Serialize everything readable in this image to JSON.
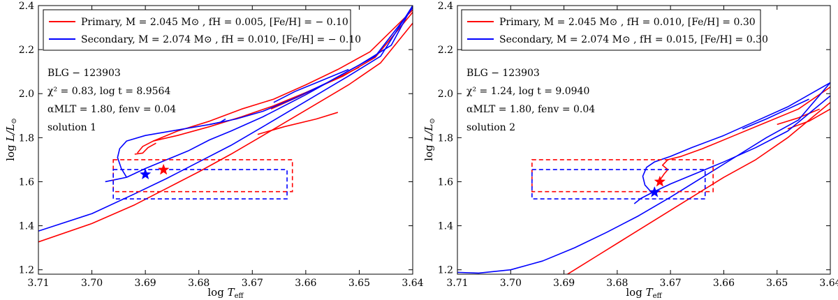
{
  "chart_data": [
    {
      "type": "line",
      "panel": "left",
      "xlabel": "log T_eff",
      "ylabel": "log L/L_⊙",
      "xlim": [
        3.71,
        3.64
      ],
      "ylim": [
        1.18,
        2.4
      ],
      "xticks": [
        "3.71",
        "3.70",
        "3.69",
        "3.68",
        "3.67",
        "3.66",
        "3.65",
        "3.64"
      ],
      "yticks": [
        "1.2",
        "1.4",
        "1.6",
        "1.8",
        "2.0",
        "2.2",
        "2.4"
      ],
      "legend": {
        "location": "top-left",
        "entries": [
          "Primary,  M = 2.045 M⊙ ,  fH = 0.005,  [Fe/H] = − 0.10",
          "Secondary,  M = 2.074 M⊙ ,  fH = 0.010,  [Fe/H] = − 0.10"
        ]
      },
      "annotations": [
        "BLG − 123903",
        "χ² = 0.83,  log t = 8.9564",
        "αMLT = 1.80,  fenv = 0.04",
        "solution 1"
      ],
      "series": [
        {
          "name": "Primary",
          "color": "#ff0000",
          "main": [
            [
              3.712,
              1.31
            ],
            [
              3.7,
              1.41
            ],
            [
              3.692,
              1.495
            ],
            [
              3.686,
              1.57
            ],
            [
              3.68,
              1.645
            ],
            [
              3.674,
              1.725
            ],
            [
              3.668,
              1.81
            ],
            [
              3.66,
              1.925
            ],
            [
              3.652,
              2.04
            ],
            [
              3.646,
              2.14
            ],
            [
              3.64,
              2.32
            ]
          ],
          "loop": [
            [
              3.6915,
              1.73
            ],
            [
              3.6905,
              1.76
            ],
            [
              3.6885,
              1.785
            ],
            [
              3.684,
              1.81
            ],
            [
              3.678,
              1.85
            ],
            [
              3.672,
              1.895
            ],
            [
              3.666,
              1.945
            ],
            [
              3.66,
              2.005
            ],
            [
              3.653,
              2.08
            ],
            [
              3.647,
              2.165
            ],
            [
              3.64,
              2.37
            ]
          ],
          "upper": [
            [
              3.6885,
              1.785
            ],
            [
              3.684,
              1.83
            ],
            [
              3.678,
              1.875
            ],
            [
              3.672,
              1.93
            ],
            [
              3.666,
              1.975
            ],
            [
              3.66,
              2.04
            ],
            [
              3.654,
              2.11
            ],
            [
              3.648,
              2.19
            ],
            [
              3.64,
              2.38
            ]
          ],
          "hook": [
            [
              3.688,
              1.775
            ],
            [
              3.6895,
              1.755
            ],
            [
              3.6905,
              1.73
            ],
            [
              3.692,
              1.725
            ]
          ],
          "short": [
            [
              3.6665,
              1.93
            ],
            [
              3.661,
              1.99
            ],
            [
              3.655,
              2.06
            ],
            [
              3.65,
              2.12
            ]
          ],
          "short2": [
            [
              3.669,
              1.815
            ],
            [
              3.664,
              1.85
            ],
            [
              3.658,
              1.885
            ],
            [
              3.654,
              1.915
            ]
          ]
        },
        {
          "name": "Secondary",
          "color": "#0000ff",
          "main": [
            [
              3.712,
              1.36
            ],
            [
              3.7,
              1.455
            ],
            [
              3.692,
              1.545
            ],
            [
              3.686,
              1.615
            ],
            [
              3.68,
              1.69
            ],
            [
              3.674,
              1.765
            ],
            [
              3.668,
              1.85
            ],
            [
              3.66,
              1.965
            ],
            [
              3.652,
              2.08
            ],
            [
              3.646,
              2.17
            ],
            [
              3.64,
              2.4
            ]
          ],
          "loop": [
            [
              3.6935,
              1.62
            ],
            [
              3.6945,
              1.66
            ],
            [
              3.6952,
              1.71
            ],
            [
              3.6948,
              1.75
            ],
            [
              3.6935,
              1.785
            ],
            [
              3.69,
              1.81
            ],
            [
              3.684,
              1.835
            ],
            [
              3.678,
              1.86
            ],
            [
              3.673,
              1.885
            ],
            [
              3.668,
              1.92
            ],
            [
              3.662,
              1.98
            ],
            [
              3.656,
              2.05
            ],
            [
              3.65,
              2.13
            ],
            [
              3.644,
              2.22
            ],
            [
              3.64,
              2.4
            ]
          ],
          "inner": [
            [
              3.6935,
              1.62
            ],
            [
              3.69,
              1.66
            ],
            [
              3.686,
              1.7
            ],
            [
              3.682,
              1.74
            ],
            [
              3.678,
              1.79
            ],
            [
              3.674,
              1.83
            ],
            [
              3.668,
              1.895
            ],
            [
              3.66,
              1.995
            ],
            [
              3.653,
              2.09
            ],
            [
              3.647,
              2.17
            ],
            [
              3.64,
              2.39
            ]
          ],
          "tail": [
            [
              3.6935,
              1.62
            ],
            [
              3.6955,
              1.61
            ],
            [
              3.6975,
              1.6
            ]
          ],
          "kink": [
            [
              3.678,
              1.86
            ],
            [
              3.676,
              1.87
            ],
            [
              3.675,
              1.885
            ]
          ],
          "short": [
            [
              3.666,
              1.96
            ],
            [
              3.662,
              2.01
            ],
            [
              3.658,
              2.05
            ],
            [
              3.652,
              2.11
            ]
          ]
        }
      ],
      "stars": [
        {
          "name": "Secondary",
          "x": 3.69,
          "y": 1.633,
          "color": "#0000ff"
        },
        {
          "name": "Primary",
          "x": 3.6866,
          "y": 1.654,
          "color": "#ff0000"
        }
      ],
      "boxes": [
        {
          "name": "Primary",
          "xmin": 3.6625,
          "xmax": 3.696,
          "ymin": 1.555,
          "ymax": 1.7,
          "color": "#ff0000"
        },
        {
          "name": "Secondary",
          "xmin": 3.6635,
          "xmax": 3.696,
          "ymin": 1.522,
          "ymax": 1.655,
          "color": "#0000ff"
        }
      ]
    },
    {
      "type": "line",
      "panel": "right",
      "xlabel": "log T_eff",
      "ylabel": "log L/L_⊙",
      "xlim": [
        3.71,
        3.64
      ],
      "ylim": [
        1.18,
        2.4
      ],
      "xticks": [
        "3.71",
        "3.70",
        "3.69",
        "3.68",
        "3.67",
        "3.66",
        "3.65",
        "3.64"
      ],
      "yticks": [
        "1.2",
        "1.4",
        "1.6",
        "1.8",
        "2.0",
        "2.2",
        "2.4"
      ],
      "legend": {
        "location": "top-left",
        "entries": [
          "Primary,  M = 2.045 M⊙ ,  fH = 0.010,  [Fe/H] = 0.30",
          "Secondary,  M = 2.074 M⊙ ,  fH = 0.015,  [Fe/H] = 0.30"
        ]
      },
      "annotations": [
        "BLG − 123903",
        "χ² = 1.24,  log t = 9.0940",
        "αMLT = 1.80,  fenv = 0.04",
        "solution 2"
      ],
      "series": [
        {
          "name": "Primary",
          "color": "#ff0000",
          "main": [
            [
              3.69,
              1.17
            ],
            [
              3.684,
              1.26
            ],
            [
              3.678,
              1.35
            ],
            [
              3.672,
              1.44
            ],
            [
              3.666,
              1.53
            ],
            [
              3.66,
              1.62
            ],
            [
              3.654,
              1.7
            ],
            [
              3.648,
              1.8
            ],
            [
              3.64,
              1.96
            ]
          ],
          "loop": [
            [
              3.6705,
              1.655
            ],
            [
              3.6715,
              1.675
            ],
            [
              3.6705,
              1.7
            ],
            [
              3.668,
              1.715
            ],
            [
              3.664,
              1.75
            ],
            [
              3.658,
              1.81
            ],
            [
              3.652,
              1.87
            ],
            [
              3.646,
              1.93
            ],
            [
              3.64,
              2.03
            ]
          ],
          "hook": [
            [
              3.6705,
              1.655
            ],
            [
              3.6712,
              1.635
            ],
            [
              3.6722,
              1.6
            ]
          ],
          "short": [
            [
              3.65,
              1.86
            ],
            [
              3.646,
              1.89
            ],
            [
              3.642,
              1.93
            ]
          ],
          "short2": [
            [
              3.648,
              1.84
            ],
            [
              3.644,
              1.875
            ],
            [
              3.64,
              1.93
            ]
          ]
        },
        {
          "name": "Secondary",
          "color": "#0000ff",
          "main": [
            [
              3.712,
              1.19
            ],
            [
              3.706,
              1.185
            ],
            [
              3.7,
              1.2
            ],
            [
              3.694,
              1.24
            ],
            [
              3.688,
              1.3
            ],
            [
              3.682,
              1.37
            ],
            [
              3.676,
              1.445
            ],
            [
              3.67,
              1.53
            ],
            [
              3.664,
              1.62
            ],
            [
              3.658,
              1.71
            ],
            [
              3.652,
              1.8
            ],
            [
              3.646,
              1.88
            ],
            [
              3.64,
              2.05
            ]
          ],
          "loop": [
            [
              3.6735,
              1.55
            ],
            [
              3.6748,
              1.585
            ],
            [
              3.6752,
              1.625
            ],
            [
              3.6745,
              1.665
            ],
            [
              3.673,
              1.69
            ],
            [
              3.67,
              1.715
            ],
            [
              3.666,
              1.755
            ],
            [
              3.66,
              1.81
            ],
            [
              3.654,
              1.875
            ],
            [
              3.648,
              1.94
            ],
            [
              3.64,
              2.05
            ]
          ],
          "inner": [
            [
              3.6735,
              1.55
            ],
            [
              3.67,
              1.59
            ],
            [
              3.666,
              1.63
            ],
            [
              3.66,
              1.69
            ],
            [
              3.654,
              1.755
            ],
            [
              3.648,
              1.83
            ],
            [
              3.64,
              1.99
            ]
          ],
          "tail": [
            [
              3.6735,
              1.55
            ],
            [
              3.6755,
              1.525
            ],
            [
              3.6768,
              1.5
            ]
          ],
          "short": [
            [
              3.6565,
              1.84
            ],
            [
              3.652,
              1.885
            ],
            [
              3.648,
              1.93
            ],
            [
              3.644,
              1.975
            ]
          ]
        }
      ],
      "stars": [
        {
          "name": "Secondary",
          "x": 3.673,
          "y": 1.552,
          "color": "#0000ff"
        },
        {
          "name": "Primary",
          "x": 3.672,
          "y": 1.6,
          "color": "#ff0000"
        }
      ],
      "boxes": [
        {
          "name": "Primary",
          "xmin": 3.662,
          "xmax": 3.696,
          "ymin": 1.555,
          "ymax": 1.7,
          "color": "#ff0000"
        },
        {
          "name": "Secondary",
          "xmin": 3.6635,
          "xmax": 3.696,
          "ymin": 1.522,
          "ymax": 1.655,
          "color": "#0000ff"
        }
      ]
    }
  ]
}
